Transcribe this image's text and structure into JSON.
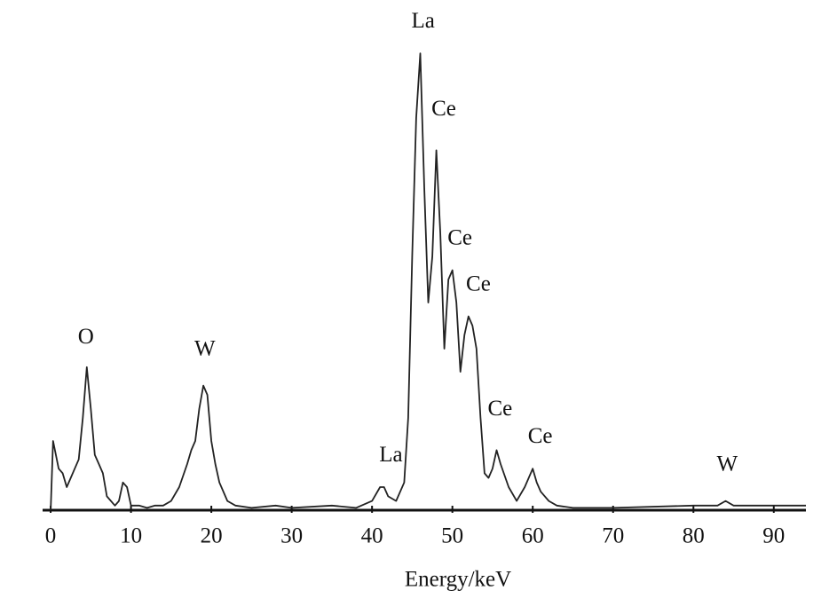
{
  "chart_data": {
    "type": "line",
    "x_label": "Energy/keV",
    "xlim": [
      -1,
      94
    ],
    "ylim": [
      0,
      100
    ],
    "xticks": [
      0,
      10,
      20,
      30,
      40,
      50,
      60,
      70,
      80,
      90
    ],
    "color": "#222222",
    "x": [
      0,
      0.3,
      1,
      1.5,
      2,
      2.5,
      3,
      3.5,
      4,
      4.5,
      5,
      5.5,
      6,
      6.5,
      7,
      8,
      8.5,
      9,
      9.5,
      10,
      11,
      12,
      13,
      14,
      15,
      16,
      17,
      17.5,
      18,
      18.5,
      19,
      19.5,
      20,
      20.5,
      21,
      22,
      23,
      25,
      28,
      30,
      35,
      38,
      40,
      41,
      41.5,
      42,
      43,
      44,
      44.5,
      45,
      45.5,
      46,
      46.5,
      47,
      47.5,
      48,
      48.5,
      49,
      49.5,
      50,
      50.5,
      51,
      51.5,
      52,
      52.5,
      53,
      53.5,
      54,
      54.5,
      55,
      55.5,
      56,
      57,
      58,
      59,
      60,
      60.5,
      61,
      62,
      63,
      65,
      70,
      80,
      83,
      84,
      85,
      90,
      94
    ],
    "values": [
      0,
      15,
      9,
      8,
      5,
      7,
      9,
      11,
      20,
      31,
      22,
      12,
      10,
      8,
      3,
      1,
      2,
      6,
      5,
      1,
      1,
      0.5,
      1,
      1,
      2,
      5,
      10,
      13,
      15,
      22,
      27,
      25,
      15,
      10,
      6,
      2,
      1,
      0.5,
      1,
      0.5,
      1,
      0.5,
      2,
      5,
      5,
      3,
      2,
      6,
      20,
      55,
      85,
      99,
      70,
      45,
      55,
      78,
      60,
      35,
      50,
      52,
      45,
      30,
      38,
      42,
      40,
      35,
      20,
      8,
      7,
      9,
      13,
      10,
      5,
      2,
      5,
      9,
      6,
      4,
      2,
      1,
      0.5,
      0.5,
      1,
      1,
      2,
      1,
      1,
      1
    ],
    "annotations": [
      {
        "text": "O",
        "x": 4.5,
        "y": 34.6
      },
      {
        "text": "W",
        "x": 19,
        "y": 32
      },
      {
        "text": "La",
        "x": 42,
        "y": 9
      },
      {
        "text": "La",
        "x": 46,
        "y": 103
      },
      {
        "text": "Ce",
        "x": 48.5,
        "y": 84
      },
      {
        "text": "Ce",
        "x": 50.5,
        "y": 56
      },
      {
        "text": "Ce",
        "x": 52.8,
        "y": 46
      },
      {
        "text": "Ce",
        "x": 55.5,
        "y": 19
      },
      {
        "text": "Ce",
        "x": 60.5,
        "y": 13
      },
      {
        "text": "W",
        "x": 84,
        "y": 7
      }
    ]
  }
}
